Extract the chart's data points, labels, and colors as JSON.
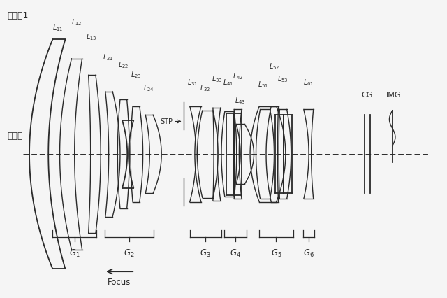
{
  "bg_color": "#f5f5f5",
  "line_color": "#2a2a2a",
  "title_ja1": "実施例1",
  "title_ja2": "広角端",
  "focus_label": "Focus",
  "stp_label": "STP",
  "cg_label": "CG",
  "img_label": "IMG",
  "xlim": [
    0,
    10.5
  ],
  "ylim": [
    -2.6,
    2.8
  ]
}
